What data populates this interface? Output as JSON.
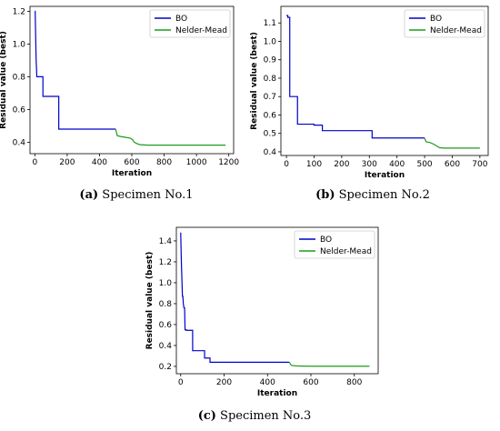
{
  "colors": {
    "bo": "#0000cc",
    "nm": "#1f9a1f"
  },
  "chart_data": [
    {
      "type": "line",
      "caption": {
        "id": "(a)",
        "text": "Specimen No.1"
      },
      "xlabel": "Iteration",
      "ylabel": "Residual value (best)",
      "xlim": [
        -30,
        1230
      ],
      "ylim": [
        0.33,
        1.23
      ],
      "xticks": [
        0,
        200,
        400,
        600,
        800,
        1000,
        1200
      ],
      "yticks": [
        0.4,
        0.6,
        0.8,
        1.0,
        1.2
      ],
      "grid": false,
      "legend": "top-right",
      "series": [
        {
          "name": "BO",
          "color": "#0000cc",
          "x": [
            0,
            2,
            4,
            6,
            8,
            10,
            12,
            20,
            20,
            50,
            50,
            148,
            148,
            500
          ],
          "y": [
            1.2,
            1.2,
            1.1,
            1.0,
            0.9,
            0.86,
            0.8,
            0.8,
            0.8,
            0.8,
            0.68,
            0.68,
            0.48,
            0.48
          ]
        },
        {
          "name": "Nelder-Mead",
          "color": "#1f9a1f",
          "x": [
            500,
            510,
            530,
            560,
            590,
            605,
            615,
            625,
            635,
            650,
            700,
            800,
            900,
            1000,
            1100,
            1180
          ],
          "y": [
            0.48,
            0.44,
            0.435,
            0.43,
            0.425,
            0.415,
            0.4,
            0.395,
            0.39,
            0.385,
            0.382,
            0.382,
            0.382,
            0.382,
            0.382,
            0.382
          ]
        }
      ]
    },
    {
      "type": "line",
      "caption": {
        "id": "(b)",
        "text": "Specimen No.2"
      },
      "xlabel": "Iteration",
      "ylabel": "Residual value (best)",
      "xlim": [
        -20,
        730
      ],
      "ylim": [
        0.38,
        1.19
      ],
      "xticks": [
        0,
        100,
        200,
        300,
        400,
        500,
        600,
        700
      ],
      "yticks": [
        0.4,
        0.5,
        0.6,
        0.7,
        0.8,
        0.9,
        1.0,
        1.1
      ],
      "grid": false,
      "legend": "top-right",
      "series": [
        {
          "name": "BO",
          "color": "#0000cc",
          "x": [
            0,
            5,
            5,
            12,
            12,
            40,
            40,
            100,
            100,
            130,
            130,
            310,
            310,
            500
          ],
          "y": [
            1.14,
            1.14,
            1.13,
            1.13,
            0.7,
            0.7,
            0.55,
            0.55,
            0.545,
            0.545,
            0.515,
            0.515,
            0.475,
            0.475
          ]
        },
        {
          "name": "Nelder-Mead",
          "color": "#1f9a1f",
          "x": [
            500,
            505,
            520,
            535,
            545,
            555,
            570,
            600,
            650,
            700
          ],
          "y": [
            0.475,
            0.455,
            0.45,
            0.44,
            0.43,
            0.422,
            0.42,
            0.42,
            0.42,
            0.42
          ]
        }
      ]
    },
    {
      "type": "line",
      "caption": {
        "id": "(c)",
        "text": "Specimen No.3"
      },
      "xlabel": "Iteration",
      "ylabel": "Residual value (best)",
      "xlim": [
        -20,
        910
      ],
      "ylim": [
        0.13,
        1.53
      ],
      "xticks": [
        0,
        200,
        400,
        600,
        800
      ],
      "yticks": [
        0.2,
        0.4,
        0.6,
        0.8,
        1.0,
        1.2,
        1.4
      ],
      "grid": false,
      "legend": "top-right",
      "series": [
        {
          "name": "BO",
          "color": "#0000cc",
          "x": [
            0,
            3,
            6,
            8,
            10,
            12,
            15,
            18,
            20,
            25,
            25,
            55,
            55,
            110,
            110,
            135,
            135,
            500
          ],
          "y": [
            1.48,
            1.2,
            1.0,
            0.87,
            0.87,
            0.8,
            0.76,
            0.76,
            0.55,
            0.55,
            0.545,
            0.545,
            0.35,
            0.35,
            0.28,
            0.28,
            0.24,
            0.24
          ]
        },
        {
          "name": "Nelder-Mead",
          "color": "#1f9a1f",
          "x": [
            500,
            510,
            530,
            560,
            600,
            700,
            800,
            870
          ],
          "y": [
            0.24,
            0.21,
            0.205,
            0.203,
            0.202,
            0.202,
            0.202,
            0.202
          ]
        }
      ]
    }
  ]
}
